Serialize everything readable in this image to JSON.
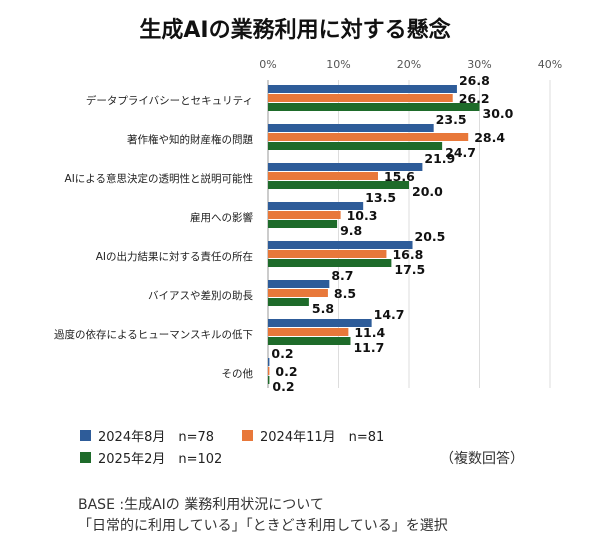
{
  "chart_data": {
    "type": "bar",
    "orientation": "horizontal",
    "title": "生成AIの業務利用に対する懸念",
    "xlim": [
      0,
      40
    ],
    "x_ticks": [
      "0%",
      "10%",
      "20%",
      "30%",
      "40%"
    ],
    "grid": true,
    "categories": [
      "データプライバシーとセキュリティ",
      "著作権や知的財産権の問題",
      "AIによる意思決定の透明性と説明可能性",
      "雇用への影響",
      "AIの出力結果に対する責任の所在",
      "バイアスや差別の助長",
      "過度の依存によるヒューマンスキルの低下",
      "その他"
    ],
    "series": [
      {
        "name": "2024年8月　n=78",
        "color": "#2e5c99",
        "values": [
          26.8,
          23.5,
          21.9,
          13.5,
          20.5,
          8.7,
          14.7,
          0.2
        ],
        "labels": [
          "26.8",
          "23.5",
          "21.9",
          "13.5",
          "20.5",
          "8.7",
          "14.7",
          "0.2"
        ]
      },
      {
        "name": "2024年11月　n=81",
        "color": "#e8783a",
        "values": [
          26.2,
          28.4,
          15.6,
          10.3,
          16.8,
          8.5,
          11.4,
          0.2
        ],
        "labels": [
          "26.2",
          "28.4",
          "15.6",
          "10.3",
          "16.8",
          "8.5",
          "11.4",
          "0.2"
        ]
      },
      {
        "name": "2025年2月　n=102",
        "color": "#1e6b2a",
        "values": [
          30.0,
          24.7,
          20.0,
          9.8,
          17.5,
          5.8,
          11.7,
          0.2
        ],
        "labels": [
          "30.0",
          "24.7",
          "20.0",
          "9.8",
          "17.5",
          "5.8",
          "11.7",
          "0.2"
        ]
      }
    ],
    "legend_position": "bottom-left"
  },
  "notes": {
    "multiple_answers": "（複数回答）",
    "base_line1": "BASE :生成AIの 業務利用状況について",
    "base_line2": "「日常的に利用している」「ときどき利用している」を選択"
  }
}
